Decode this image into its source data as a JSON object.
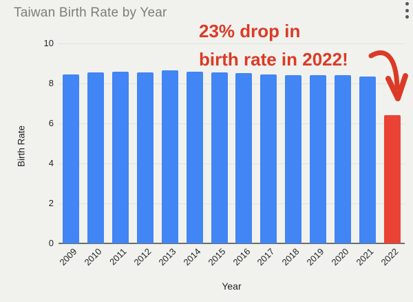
{
  "chart_data": {
    "type": "bar",
    "title": "Taiwan Birth Rate by Year",
    "xlabel": "Year",
    "ylabel": "Birth Rate",
    "categories": [
      "2009",
      "2010",
      "2011",
      "2012",
      "2013",
      "2014",
      "2015",
      "2016",
      "2017",
      "2018",
      "2019",
      "2020",
      "2021",
      "2022"
    ],
    "values": [
      8.45,
      8.55,
      8.6,
      8.55,
      8.65,
      8.6,
      8.55,
      8.5,
      8.45,
      8.4,
      8.4,
      8.4,
      8.35,
      6.4
    ],
    "ylim": [
      0,
      10
    ],
    "yticks": [
      0,
      2,
      4,
      6,
      8,
      10
    ],
    "grid": true,
    "legend": "none",
    "bar_color": "#4285f4",
    "highlight_index": 13,
    "highlight_color": "#ea4335"
  },
  "annotation": {
    "line1": "23% drop in",
    "line2": "birth rate in 2022!",
    "color": "#dc3a26"
  },
  "controls": {
    "more_options": "chart options menu"
  },
  "colors": {
    "background": "#f1f2ee",
    "title_text": "#7a7d78",
    "axis_text": "#1f2023",
    "gridline": "#e0e1dd",
    "axis_line": "#6c6e6a"
  }
}
